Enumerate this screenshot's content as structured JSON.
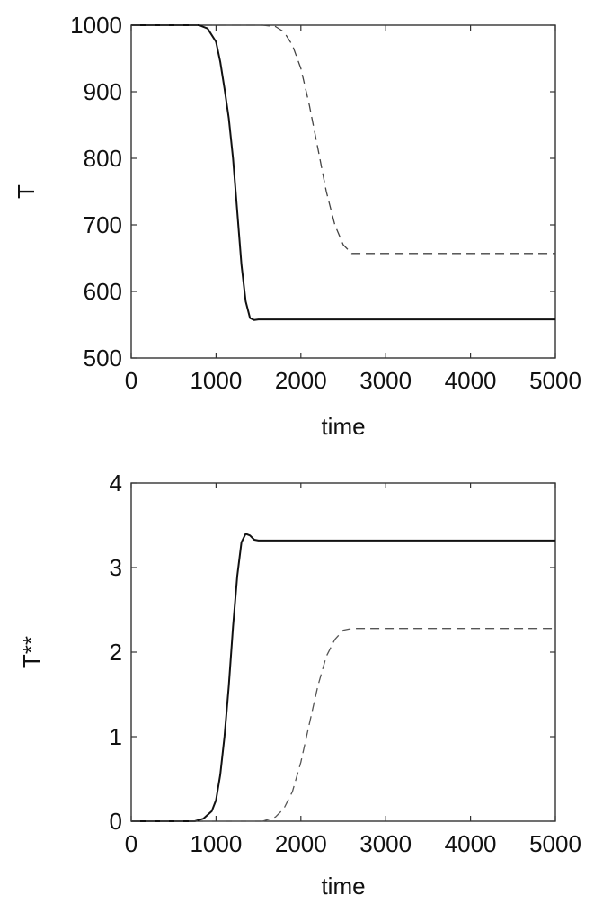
{
  "chart_data": [
    {
      "type": "line",
      "xlabel": "time",
      "ylabel": "T",
      "xlim": [
        0,
        5000
      ],
      "ylim": [
        500,
        1000
      ],
      "xticks": [
        "0",
        "1000",
        "2000",
        "3000",
        "4000",
        "5000"
      ],
      "yticks": [
        "500",
        "600",
        "700",
        "800",
        "900",
        "1000"
      ],
      "grid": false,
      "series": [
        {
          "style": "solid",
          "color": "#111111",
          "x": [
            0,
            800,
            900,
            1000,
            1050,
            1100,
            1150,
            1200,
            1250,
            1300,
            1350,
            1400,
            1450,
            1500,
            5000
          ],
          "y": [
            1000,
            1000,
            995,
            975,
            945,
            905,
            860,
            800,
            720,
            640,
            585,
            560,
            557,
            558,
            558
          ]
        },
        {
          "style": "dashed",
          "color": "#444444",
          "x": [
            0,
            1550,
            1700,
            1800,
            1900,
            2000,
            2100,
            2200,
            2300,
            2400,
            2500,
            2600,
            5000
          ],
          "y": [
            1000,
            1000,
            998,
            990,
            970,
            935,
            880,
            815,
            750,
            700,
            670,
            657,
            657
          ]
        }
      ]
    },
    {
      "type": "line",
      "xlabel": "time",
      "ylabel": "T**",
      "xlim": [
        0,
        5000
      ],
      "ylim": [
        0,
        4
      ],
      "xticks": [
        "0",
        "1000",
        "2000",
        "3000",
        "4000",
        "5000"
      ],
      "yticks": [
        "0",
        "1",
        "2",
        "3",
        "4"
      ],
      "grid": false,
      "series": [
        {
          "style": "solid",
          "color": "#111111",
          "x": [
            0,
            750,
            850,
            950,
            1000,
            1050,
            1100,
            1150,
            1200,
            1250,
            1300,
            1350,
            1400,
            1450,
            1500,
            5000
          ],
          "y": [
            0,
            0,
            0.03,
            0.12,
            0.25,
            0.55,
            1.0,
            1.6,
            2.3,
            2.9,
            3.3,
            3.4,
            3.38,
            3.33,
            3.32,
            3.32
          ]
        },
        {
          "style": "dashed",
          "color": "#555555",
          "x": [
            0,
            1550,
            1700,
            1800,
            1900,
            2000,
            2100,
            2200,
            2300,
            2400,
            2500,
            2600,
            5000
          ],
          "y": [
            0,
            0,
            0.05,
            0.15,
            0.35,
            0.7,
            1.15,
            1.6,
            1.95,
            2.15,
            2.26,
            2.28,
            2.28
          ]
        }
      ]
    }
  ]
}
